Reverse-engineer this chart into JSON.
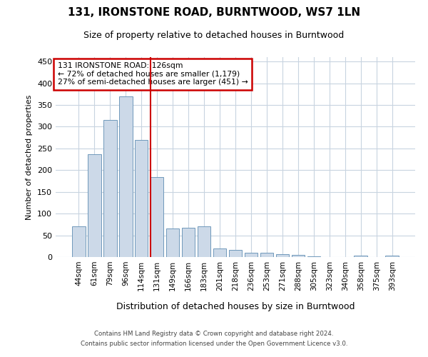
{
  "title": "131, IRONSTONE ROAD, BURNTWOOD, WS7 1LN",
  "subtitle": "Size of property relative to detached houses in Burntwood",
  "xlabel": "Distribution of detached houses by size in Burntwood",
  "ylabel": "Number of detached properties",
  "bar_color": "#ccd9e8",
  "bar_edge_color": "#7099bb",
  "background_color": "#ffffff",
  "grid_color": "#c8d4e0",
  "annotation_box_color": "#cc0000",
  "vline_color": "#cc0000",
  "categories": [
    "44sqm",
    "61sqm",
    "79sqm",
    "96sqm",
    "114sqm",
    "131sqm",
    "149sqm",
    "166sqm",
    "183sqm",
    "201sqm",
    "218sqm",
    "236sqm",
    "253sqm",
    "271sqm",
    "288sqm",
    "305sqm",
    "323sqm",
    "340sqm",
    "358sqm",
    "375sqm",
    "393sqm"
  ],
  "values": [
    70,
    237,
    316,
    369,
    270,
    184,
    65,
    68,
    70,
    20,
    17,
    10,
    10,
    6,
    5,
    1,
    0,
    0,
    3,
    0,
    3
  ],
  "vline_x_idx": 5,
  "annotation_line1": "131 IRONSTONE ROAD: 126sqm",
  "annotation_line2": "← 72% of detached houses are smaller (1,179)",
  "annotation_line3": "27% of semi-detached houses are larger (451) →",
  "ylim": [
    0,
    460
  ],
  "yticks": [
    0,
    50,
    100,
    150,
    200,
    250,
    300,
    350,
    400,
    450
  ],
  "footer_line1": "Contains HM Land Registry data © Crown copyright and database right 2024.",
  "footer_line2": "Contains public sector information licensed under the Open Government Licence v3.0."
}
